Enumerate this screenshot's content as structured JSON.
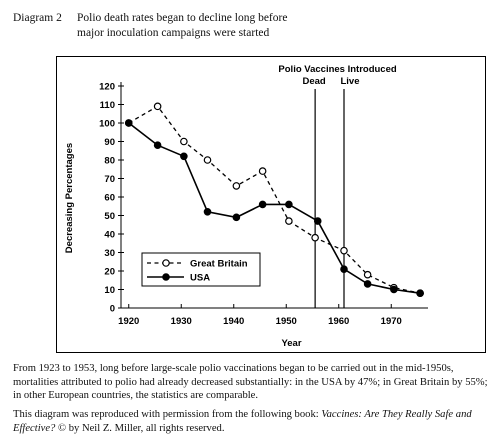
{
  "header": {
    "diagram_label": "Diagram 2",
    "title_line1": "Polio death rates began to decline long before",
    "title_line2": "major inoculation campaigns were started"
  },
  "chart_data": {
    "type": "line",
    "xlabel": "Year",
    "ylabel": "Decreasing Percentages",
    "xlim": [
      1917,
      1977
    ],
    "ylim": [
      0,
      120
    ],
    "x_ticks": [
      1920,
      1930,
      1940,
      1950,
      1960,
      1970
    ],
    "y_ticks": [
      0,
      10,
      20,
      30,
      40,
      50,
      60,
      70,
      80,
      90,
      100,
      110,
      120
    ],
    "grid": false,
    "legend_position": "center-left",
    "annotation": {
      "title": "Polio Vaccines Introduced",
      "dead_label": "Dead",
      "live_label": "Live",
      "dead_year": 1955.5,
      "live_year": 1961
    },
    "series": [
      {
        "name": "Great Britain",
        "style": "dashed-open-circle",
        "x": [
          1920,
          1925.5,
          1930.5,
          1935,
          1940.5,
          1945.5,
          1950.5,
          1955.5,
          1961,
          1965.5,
          1970.5,
          1975.5
        ],
        "y": [
          100,
          109,
          90,
          80,
          66,
          74,
          47,
          38,
          31,
          18,
          11,
          8
        ]
      },
      {
        "name": "USA",
        "style": "solid-filled-circle",
        "x": [
          1920,
          1925.5,
          1930.5,
          1935,
          1940.5,
          1945.5,
          1950.5,
          1956,
          1961,
          1965.5,
          1970.5,
          1975.5
        ],
        "y": [
          100,
          88,
          82,
          52,
          49,
          56,
          56,
          47,
          21,
          13,
          10,
          8
        ]
      }
    ]
  },
  "caption": {
    "paragraph1": "From 1923 to 1953, long before large-scale polio vaccinations began to be carried out in the mid-1950s, mortalities attributed to polio had already decreased substantially: in the USA by 47%; in Great Britain by 55%; in other European countries, the statistics are comparable.",
    "p2_before_book": "This diagram was reproduced with permission from the following book: ",
    "book_title": "Vaccines: Are They Really Safe and Effective?",
    "p2_after_book": " © by Neil Z. Miller, all rights reserved."
  }
}
